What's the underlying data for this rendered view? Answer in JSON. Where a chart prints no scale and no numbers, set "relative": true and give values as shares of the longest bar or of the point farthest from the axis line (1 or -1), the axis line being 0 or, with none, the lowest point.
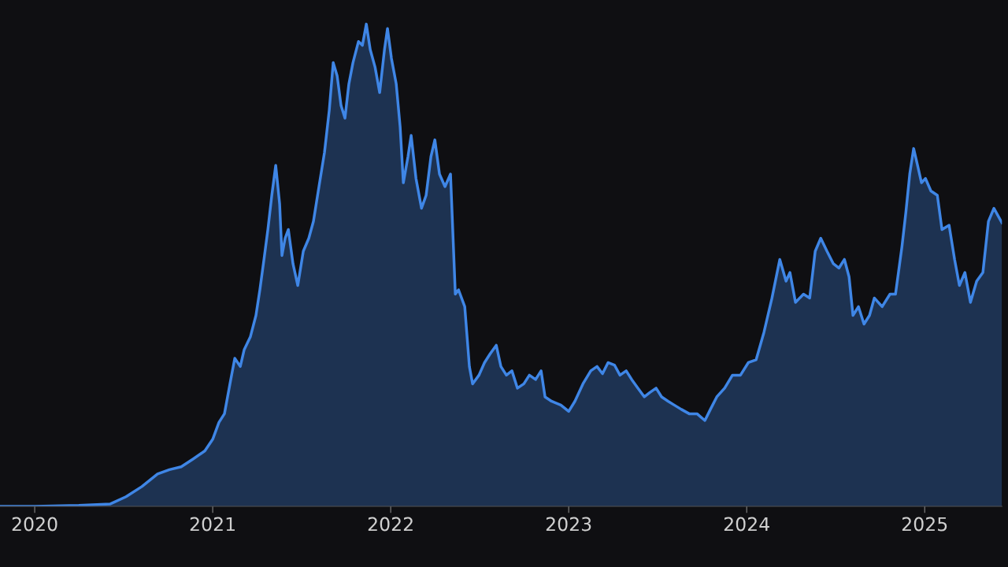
{
  "chart_data": {
    "type": "area",
    "relative": true,
    "x": [
      2019.805,
      2020.0,
      2020.248,
      2020.425,
      2020.513,
      2020.602,
      2020.69,
      2020.757,
      2020.823,
      2020.889,
      2020.956,
      2021.0,
      2021.035,
      2021.066,
      2021.097,
      2021.124,
      2021.155,
      2021.177,
      2021.212,
      2021.243,
      2021.265,
      2021.288,
      2021.31,
      2021.332,
      2021.354,
      2021.376,
      2021.389,
      2021.407,
      2021.425,
      2021.451,
      2021.478,
      2021.509,
      2021.54,
      2021.566,
      2021.597,
      2021.628,
      2021.655,
      2021.677,
      2021.699,
      2021.721,
      2021.743,
      2021.765,
      2021.788,
      2021.819,
      2021.841,
      2021.863,
      2021.885,
      2021.912,
      2021.938,
      2021.965,
      2021.982,
      2022.004,
      2022.031,
      2022.053,
      2022.071,
      2022.097,
      2022.115,
      2022.142,
      2022.173,
      2022.199,
      2022.226,
      2022.248,
      2022.274,
      2022.305,
      2022.336,
      2022.363,
      2022.381,
      2022.416,
      2022.442,
      2022.46,
      2022.496,
      2022.527,
      2022.558,
      2022.593,
      2022.619,
      2022.65,
      2022.681,
      2022.712,
      2022.748,
      2022.779,
      2022.814,
      2022.845,
      2022.867,
      2022.903,
      2022.956,
      2023.0,
      2023.035,
      2023.08,
      2023.124,
      2023.159,
      2023.19,
      2023.221,
      2023.257,
      2023.288,
      2023.323,
      2023.354,
      2023.389,
      2023.425,
      2023.456,
      2023.491,
      2023.522,
      2023.558,
      2023.593,
      2023.633,
      2023.677,
      2023.721,
      2023.765,
      2023.796,
      2023.832,
      2023.876,
      2023.92,
      2023.965,
      2024.009,
      2024.053,
      2024.097,
      2024.142,
      2024.186,
      2024.221,
      2024.243,
      2024.274,
      2024.319,
      2024.354,
      2024.385,
      2024.416,
      2024.451,
      2024.487,
      2024.518,
      2024.549,
      2024.575,
      2024.597,
      2024.628,
      2024.659,
      2024.69,
      2024.717,
      2024.761,
      2024.805,
      2024.836,
      2024.872,
      2024.894,
      2024.916,
      2024.938,
      2024.96,
      2024.982,
      2025.004,
      2025.035,
      2025.071,
      2025.097,
      2025.137,
      2025.168,
      2025.195,
      2025.226,
      2025.257,
      2025.292,
      2025.327,
      2025.358,
      2025.389,
      2025.416,
      2025.434
    ],
    "series": [
      {
        "color": "#3f86e6",
        "values": [
          0,
          0,
          0.002,
          0.005,
          0.02,
          0.041,
          0.067,
          0.076,
          0.082,
          0.098,
          0.115,
          0.139,
          0.174,
          0.192,
          0.254,
          0.307,
          0.29,
          0.325,
          0.352,
          0.396,
          0.449,
          0.512,
          0.574,
          0.645,
          0.707,
          0.627,
          0.52,
          0.556,
          0.574,
          0.503,
          0.458,
          0.529,
          0.556,
          0.591,
          0.663,
          0.734,
          0.822,
          0.92,
          0.893,
          0.831,
          0.805,
          0.876,
          0.92,
          0.964,
          0.956,
          1,
          0.947,
          0.911,
          0.858,
          0.947,
          0.991,
          0.929,
          0.876,
          0.787,
          0.671,
          0.725,
          0.769,
          0.68,
          0.618,
          0.645,
          0.725,
          0.76,
          0.689,
          0.663,
          0.689,
          0.44,
          0.449,
          0.414,
          0.29,
          0.254,
          0.272,
          0.298,
          0.316,
          0.334,
          0.29,
          0.272,
          0.281,
          0.245,
          0.254,
          0.272,
          0.263,
          0.281,
          0.227,
          0.218,
          0.21,
          0.197,
          0.218,
          0.254,
          0.281,
          0.29,
          0.275,
          0.298,
          0.293,
          0.272,
          0.281,
          0.263,
          0.245,
          0.227,
          0.236,
          0.245,
          0.227,
          0.218,
          0.21,
          0.201,
          0.192,
          0.192,
          0.178,
          0.201,
          0.227,
          0.245,
          0.272,
          0.272,
          0.298,
          0.304,
          0.361,
          0.432,
          0.512,
          0.467,
          0.485,
          0.423,
          0.44,
          0.432,
          0.529,
          0.556,
          0.529,
          0.503,
          0.494,
          0.512,
          0.476,
          0.396,
          0.414,
          0.378,
          0.396,
          0.432,
          0.414,
          0.44,
          0.44,
          0.538,
          0.609,
          0.689,
          0.742,
          0.707,
          0.671,
          0.68,
          0.654,
          0.645,
          0.574,
          0.583,
          0.512,
          0.458,
          0.485,
          0.423,
          0.467,
          0.485,
          0.591,
          0.618,
          0.6,
          0.588
        ]
      }
    ],
    "xlim": [
      2019.805,
      2025.434
    ],
    "xticks": [
      2020,
      2021,
      2022,
      2023,
      2024,
      2025
    ]
  }
}
